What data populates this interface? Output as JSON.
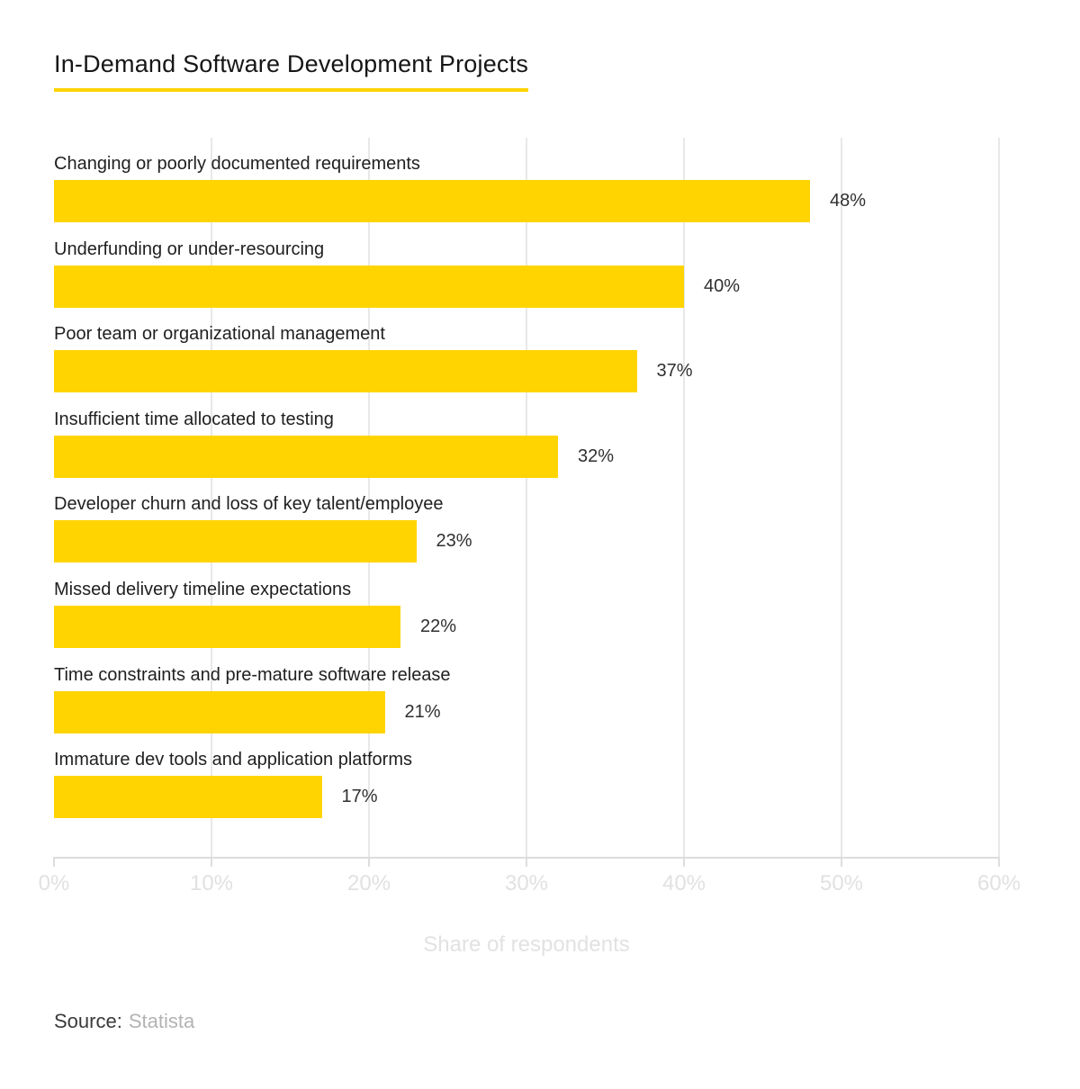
{
  "header": {
    "title": "In-Demand Software Development Projects"
  },
  "chart_data": {
    "type": "bar",
    "orientation": "horizontal",
    "title": "In-Demand Software Development Projects",
    "categories": [
      "Changing or poorly documented requirements",
      "Underfunding or under-resourcing",
      "Poor team or organizational management",
      "Insufficient time allocated to testing",
      "Developer churn and loss of key talent/employee",
      "Missed delivery timeline expectations",
      "Time constraints and pre-mature software release",
      "Immature dev tools and application platforms"
    ],
    "values": [
      48,
      40,
      37,
      32,
      23,
      22,
      21,
      17
    ],
    "value_labels": [
      "48%",
      "40%",
      "37%",
      "32%",
      "23%",
      "22%",
      "21%",
      "17%"
    ],
    "xlabel": "Share of respondents",
    "ylabel": "",
    "xlim": [
      0,
      60
    ],
    "x_ticks": [
      "0%",
      "10%",
      "20%",
      "30%",
      "40%",
      "50%",
      "60%"
    ],
    "x_tick_values": [
      0,
      10,
      20,
      30,
      40,
      50,
      60
    ],
    "grid": true,
    "legend": false,
    "bar_color": "#FFD400",
    "accent_color": "#FFD400"
  },
  "source": {
    "label": "Source:",
    "value": "Statista"
  }
}
